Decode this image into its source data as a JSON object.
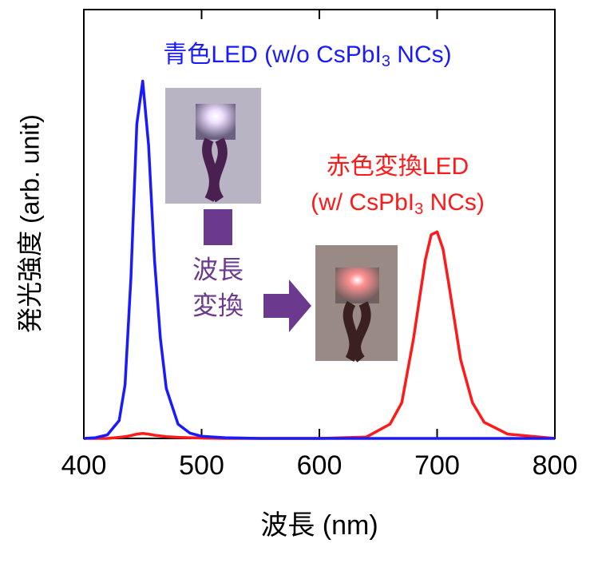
{
  "chart_data": {
    "type": "line",
    "xlabel": "波長 (nm)",
    "ylabel": "発光強度 (arb. unit)",
    "x": [
      400,
      410,
      420,
      430,
      435,
      440,
      445,
      450,
      455,
      460,
      465,
      470,
      480,
      490,
      500,
      520,
      550,
      600,
      640,
      660,
      670,
      680,
      690,
      695,
      700,
      705,
      710,
      720,
      730,
      740,
      760,
      800
    ],
    "series": [
      {
        "name": "青色LED",
        "color": "#1a1aff",
        "values": [
          0,
          0.002,
          0.01,
          0.05,
          0.15,
          0.45,
          0.88,
          1.0,
          0.82,
          0.5,
          0.28,
          0.14,
          0.04,
          0.015,
          0.006,
          0.002,
          0,
          0,
          0,
          0,
          0,
          0,
          0,
          0,
          0,
          0,
          0,
          0,
          0,
          0,
          0,
          0
        ]
      },
      {
        "name": "赤色変換LED",
        "color": "#ff1a1a",
        "values": [
          0,
          0,
          0,
          0.003,
          0.005,
          0.008,
          0.012,
          0.014,
          0.012,
          0.009,
          0.007,
          0.005,
          0.003,
          0.002,
          0.001,
          0,
          0,
          0,
          0.004,
          0.04,
          0.1,
          0.28,
          0.5,
          0.57,
          0.578,
          0.53,
          0.43,
          0.22,
          0.1,
          0.045,
          0.012,
          0
        ]
      }
    ],
    "xlim": [
      400,
      800
    ],
    "xticks": [
      400,
      500,
      600,
      700,
      800
    ],
    "ylim": [
      0,
      1.2
    ],
    "annotations": {
      "blue": {
        "text": "青色LED (w/o CsPbI",
        "sub": "3",
        "tail": " NCs)"
      },
      "red_line1": "赤色変換LED",
      "red_line2": {
        "text": "(w/ CsPbI",
        "sub": "3",
        "tail": " NCs)"
      },
      "convert_line1": "波長",
      "convert_line2": "変換"
    }
  }
}
